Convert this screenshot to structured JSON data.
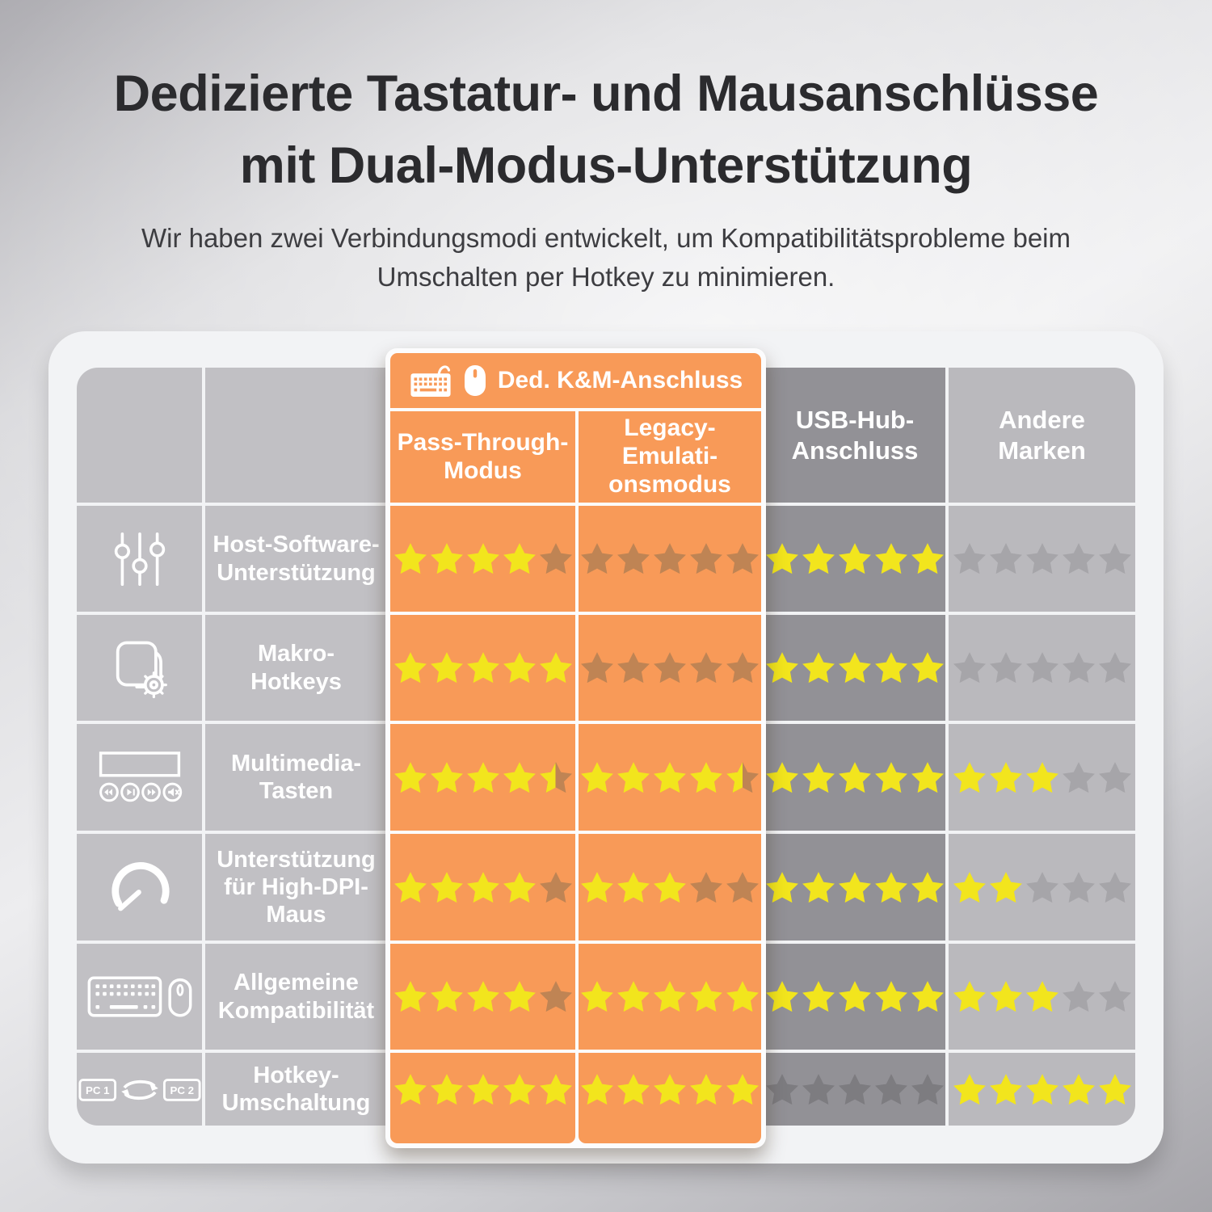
{
  "page": {
    "title_line1": "Dedizierte Tastatur- und Mausanschlüsse",
    "title_line2": "mit Dual-Modus-Unterstützung",
    "subtitle": "Wir haben zwei Verbindungsmodi entwickelt, um Kompatibilitätsprobleme beim\nUmschalten per Hotkey zu minimieren."
  },
  "table": {
    "group_header": {
      "label": "Ded. K&M-Anschluss",
      "icons": [
        "keyboard-icon",
        "mouse-icon"
      ]
    },
    "columns": [
      {
        "id": "pass_through",
        "label": "Pass-Through-\nModus"
      },
      {
        "id": "legacy_emulation",
        "label": "Legacy-\nEmulati-\nonsmodus"
      },
      {
        "id": "usb_hub",
        "label": "USB-Hub-\nAnschluss"
      },
      {
        "id": "andere_marken",
        "label": "Andere\nMarken"
      }
    ],
    "pc_switch_labels": [
      "PC 1",
      "PC 2"
    ],
    "rating_scale": 5,
    "rows": [
      {
        "icon": "mixer-sliders-icon",
        "label": "Host-Software-\nUnterstützung",
        "ratings": [
          4,
          0,
          5,
          0
        ]
      },
      {
        "icon": "macro-gear-icon",
        "label": "Makro-\nHotkeys",
        "ratings": [
          5,
          0,
          5,
          0
        ]
      },
      {
        "icon": "media-controls-icon",
        "label": "Multimedia-\nTasten",
        "ratings": [
          4.5,
          4.5,
          5,
          3
        ]
      },
      {
        "icon": "speed-gauge-icon",
        "label": "Unterstützung\nfür High-DPI-\nMaus",
        "ratings": [
          4,
          3,
          5,
          2
        ]
      },
      {
        "icon": "keyboard-mouse-icon",
        "label": "Allgemeine\nKompatibilität",
        "ratings": [
          4,
          5,
          5,
          3
        ]
      },
      {
        "icon": "pc-switch-icon",
        "label": "Hotkey-\nUmschaltung",
        "ratings": [
          5,
          5,
          0,
          5
        ]
      }
    ]
  },
  "colors": {
    "orange": "#f89a58",
    "panel_bg": "#f2f3f5",
    "cell_gray": "#c1c0c4",
    "col_dark": "#929196",
    "col_light": "#bab9bd",
    "star_filled": "#f2e51d",
    "star_empty_orange": "#bf8454",
    "star_empty_dark": "#7d7c80",
    "star_empty_light": "#a6a5a9"
  },
  "chart_data": {
    "type": "table",
    "title": "Dedizierte Tastatur- und Mausanschlüsse mit Dual-Modus-Unterstützung",
    "subtitle": "Wir haben zwei Verbindungsmodi entwickelt, um Kompatibilitätsprobleme beim Umschalten per Hotkey zu minimieren.",
    "columns": [
      "Ded. K&M-Anschluss – Pass-Through-Modus",
      "Ded. K&M-Anschluss – Legacy-Emulationsmodus",
      "USB-Hub-Anschluss",
      "Andere Marken"
    ],
    "rows": [
      "Host-Software-Unterstützung",
      "Makro-Hotkeys",
      "Multimedia-Tasten",
      "Unterstützung für High-DPI-Maus",
      "Allgemeine Kompatibilität",
      "Hotkey-Umschaltung"
    ],
    "values": [
      [
        4,
        0,
        5,
        0
      ],
      [
        5,
        0,
        5,
        0
      ],
      [
        4.5,
        4.5,
        5,
        3
      ],
      [
        4,
        3,
        5,
        2
      ],
      [
        4,
        5,
        5,
        3
      ],
      [
        5,
        5,
        0,
        5
      ]
    ],
    "value_scale": "0-5 stars"
  }
}
